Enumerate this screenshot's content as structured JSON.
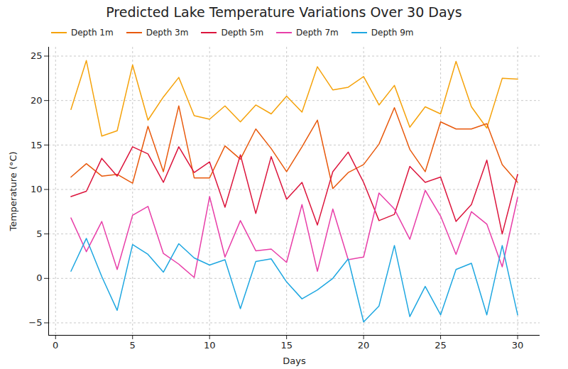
{
  "chart_data": {
    "type": "line",
    "title": "Predicted Lake Temperature Variations Over 30 Days",
    "x_label": "Days",
    "y_label": "Temperature (°C)",
    "x": [
      1,
      2,
      3,
      4,
      5,
      6,
      7,
      8,
      9,
      10,
      11,
      12,
      13,
      14,
      15,
      16,
      17,
      18,
      19,
      20,
      21,
      22,
      23,
      24,
      25,
      26,
      27,
      28,
      29,
      30
    ],
    "series": [
      {
        "name": "Depth 1m",
        "color": "#f5a20a",
        "values": [
          19.0,
          24.5,
          16.0,
          16.6,
          24.0,
          17.8,
          20.4,
          22.6,
          18.3,
          17.9,
          19.4,
          17.6,
          19.5,
          18.5,
          20.5,
          18.7,
          23.8,
          21.2,
          21.5,
          22.7,
          19.5,
          21.7,
          17.0,
          19.3,
          18.5,
          24.4,
          19.3,
          16.9,
          22.5,
          22.4
        ]
      },
      {
        "name": "Depth 3m",
        "color": "#e8590c",
        "values": [
          11.4,
          12.9,
          11.5,
          11.7,
          10.7,
          17.1,
          12.0,
          19.4,
          11.3,
          11.3,
          14.9,
          13.4,
          16.8,
          14.6,
          12.0,
          14.8,
          17.8,
          10.1,
          11.9,
          12.8,
          15.1,
          19.2,
          14.5,
          12.0,
          17.6,
          16.8,
          16.8,
          17.4,
          12.8,
          10.8
        ]
      },
      {
        "name": "Depth 5m",
        "color": "#dc143c",
        "values": [
          9.2,
          9.8,
          13.5,
          11.5,
          14.8,
          14.0,
          10.8,
          14.8,
          11.9,
          13.1,
          8.0,
          13.9,
          7.3,
          13.7,
          8.9,
          10.8,
          6.0,
          12.0,
          14.2,
          10.8,
          6.5,
          7.2,
          12.6,
          10.8,
          11.4,
          6.4,
          8.3,
          13.3,
          5.0,
          11.7
        ]
      },
      {
        "name": "Depth 7m",
        "color": "#e83ea8",
        "values": [
          6.8,
          3.0,
          6.4,
          1.0,
          7.1,
          8.1,
          2.8,
          1.6,
          0.1,
          9.2,
          2.4,
          6.5,
          3.1,
          3.3,
          1.8,
          8.3,
          0.8,
          7.8,
          2.1,
          2.4,
          9.6,
          7.8,
          4.4,
          9.9,
          7.0,
          2.7,
          7.5,
          6.1,
          1.3,
          9.1
        ]
      },
      {
        "name": "Depth 9m",
        "color": "#1ea7e1",
        "values": [
          0.8,
          4.5,
          0.2,
          -3.6,
          3.8,
          2.7,
          0.7,
          3.9,
          2.3,
          1.5,
          2.1,
          -3.4,
          1.9,
          2.2,
          -0.4,
          -2.3,
          -1.3,
          0.0,
          2.2,
          -4.9,
          -3.1,
          3.7,
          -4.3,
          -0.9,
          -4.1,
          1.0,
          1.7,
          -4.1,
          3.7,
          -4.1
        ]
      }
    ],
    "xlim": [
      -0.45,
      31.45
    ],
    "ylim": [
      -6.4,
      26.0
    ],
    "xticks": [
      0,
      5,
      10,
      15,
      20,
      25,
      30
    ],
    "yticks": [
      -5,
      0,
      5,
      10,
      15,
      20,
      25
    ],
    "grid": true,
    "legend": "upper left"
  }
}
